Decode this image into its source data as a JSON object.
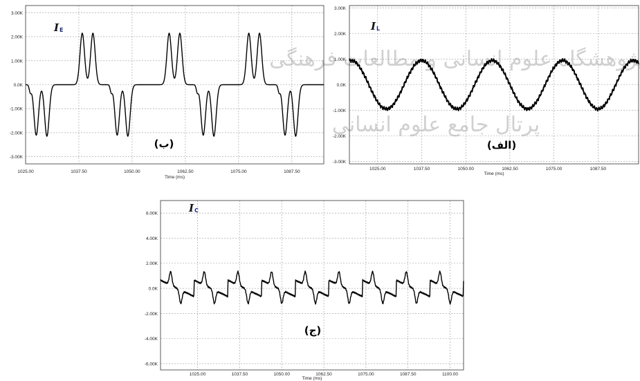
{
  "watermark": {
    "line1": "پژوهشگاه علوم انسانی و مطالعات فرهنگی",
    "line2": "پرتال جامع علوم انسانی"
  },
  "chart_data": [
    {
      "type": "line",
      "signal_name": "I",
      "signal_subscript": "E",
      "panel_label": "(ب)",
      "xlabel": "Time (ms)",
      "xlim": [
        1025,
        1095
      ],
      "ylim": [
        -3300,
        3300
      ],
      "x_ticks": [
        1025,
        1037.5,
        1050,
        1062.5,
        1075,
        1087.5
      ],
      "x_tick_labels": [
        "1025.00",
        "1037.50",
        "1050.00",
        "1062.50",
        "1075.00",
        "1087.50"
      ],
      "y_ticks": [
        3000,
        2000,
        1000,
        0,
        -1000,
        -2000,
        -3000
      ],
      "y_tick_labels": [
        "3.00K",
        "2.00K",
        "1.00K",
        "0.0K",
        "-1.00K",
        "-2.00K",
        "-3.00K"
      ],
      "grid": true,
      "series": [
        {
          "color": "#000000",
          "pulse_centers": [
            1027.5,
            1030.0,
            1038.3,
            1040.8,
            1046.5,
            1049.0,
            1058.7,
            1061.2,
            1066.7,
            1069.2,
            1077.4,
            1079.9,
            1085.9,
            1088.4
          ],
          "pulse_signs": [
            -1,
            -1,
            1,
            1,
            -1,
            -1,
            1,
            1,
            -1,
            -1,
            1,
            1,
            -1,
            -1
          ],
          "pulse_small_centers": [
            1027.5,
            1046.5,
            1066.7,
            1085.9
          ],
          "pulse_peak": 2150,
          "pulse_small_peak": 300
        }
      ]
    },
    {
      "type": "line",
      "signal_name": "I",
      "signal_subscript": "L",
      "panel_label": "(الف)",
      "xlabel": "Time (ms)",
      "xlim": [
        1017,
        1099
      ],
      "ylim": [
        -3100,
        3100
      ],
      "x_ticks": [
        1025,
        1037.5,
        1050,
        1062.5,
        1075,
        1087.5
      ],
      "x_tick_labels": [
        "1025.00",
        "1037.50",
        "1050.00",
        "1062.50",
        "1075.00",
        "1087.50"
      ],
      "y_ticks": [
        3000,
        2000,
        1000,
        0,
        -1000,
        -2000,
        -3000
      ],
      "y_tick_labels": [
        "3.00K",
        "2.00K",
        "1.00K",
        "0.0K",
        "-1.00K",
        "-2.00K",
        "-3.00K"
      ],
      "grid": true,
      "series": [
        {
          "color": "#000000",
          "amplitude": 950,
          "period_ms": 20,
          "peak_time": 1017.5
        }
      ]
    },
    {
      "type": "line",
      "signal_name": "I",
      "signal_subscript": "C",
      "panel_label": "(ج)",
      "xlabel": "Time (ms)",
      "xlim": [
        1014,
        1104
      ],
      "ylim": [
        -6500,
        7000
      ],
      "x_ticks": [
        1025,
        1037.5,
        1050,
        1062.5,
        1075,
        1087.5,
        1100
      ],
      "x_tick_labels": [
        "1025.00",
        "1037.50",
        "1050.00",
        "1062.50",
        "1075.00",
        "1087.50",
        "1100.00"
      ],
      "y_ticks": [
        6000,
        4000,
        2000,
        0,
        -2000,
        -4000,
        -6000
      ],
      "y_tick_labels": [
        "6.00K",
        "4.00K",
        "2.00K",
        "0.0K",
        "-2.00K",
        "-4.00K",
        "-6.00K"
      ],
      "grid": true,
      "series": [
        {
          "color": "#000000",
          "sawtooth_amplitude": 650,
          "sawtooth_period_ms": 10,
          "pulse_peak": 1500
        }
      ]
    }
  ]
}
